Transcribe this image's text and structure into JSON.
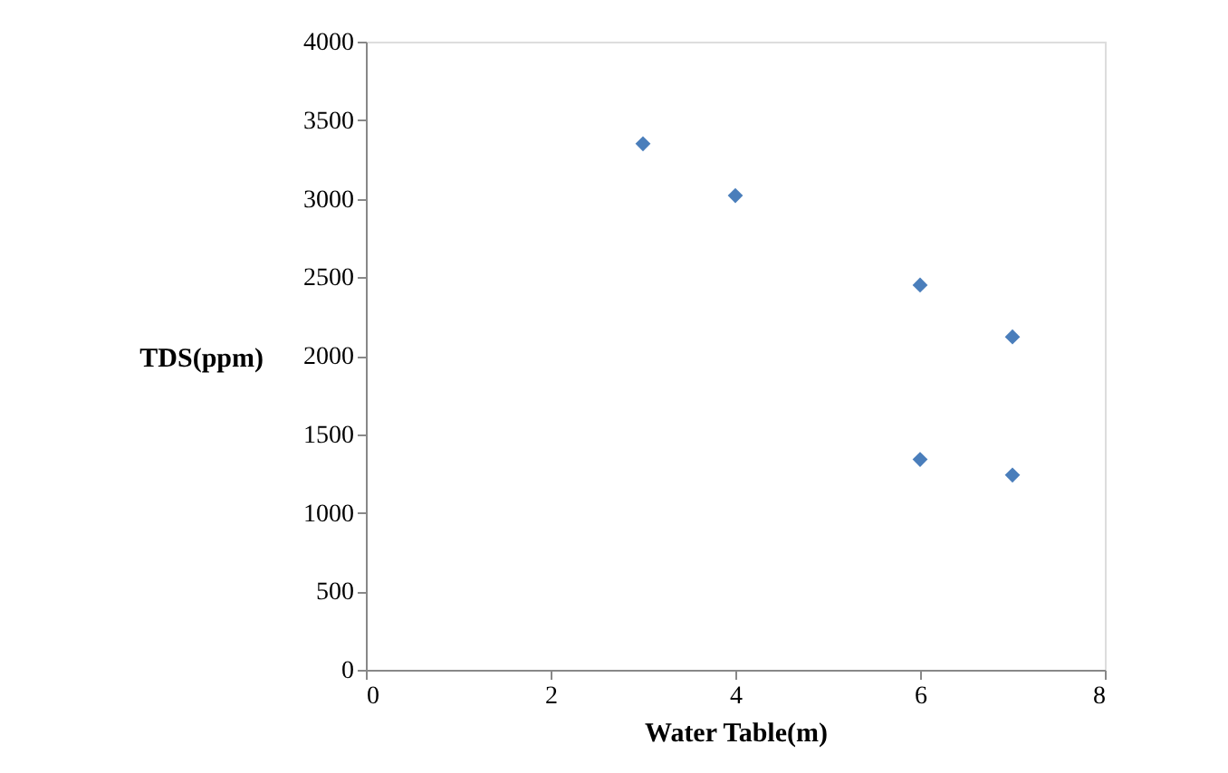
{
  "chart_data": {
    "type": "scatter",
    "xlabel": "Water Table(m)",
    "ylabel": "TDS(ppm)",
    "x": [
      3,
      4,
      6,
      7,
      6,
      7
    ],
    "series": [
      {
        "color": "#4a7ebb",
        "values": [
          3350,
          3020,
          2450,
          2120,
          1340,
          1240
        ]
      }
    ],
    "xlim": [
      0,
      8
    ],
    "xticks": [
      0,
      2,
      4,
      6,
      8
    ],
    "ylim": [
      0,
      4000
    ],
    "yticks": [
      0,
      500,
      1000,
      1500,
      2000,
      2500,
      3000,
      3500,
      4000
    ],
    "grid": false,
    "legend": false,
    "marker": "diamond"
  }
}
